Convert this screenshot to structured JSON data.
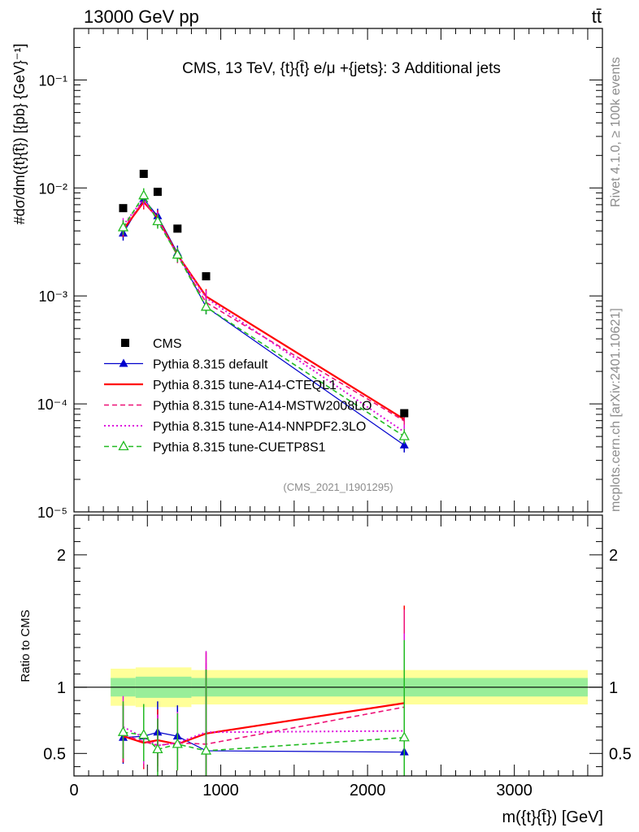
{
  "header": {
    "left": "13000 GeV pp",
    "right": "tt̄"
  },
  "side_labels": {
    "rivet": "Rivet 4.1.0, ≥ 100k events",
    "mcplots": "mcplots.cern.ch [arXiv:2401.10621]"
  },
  "chart_data": [
    {
      "type": "line",
      "panel": "main",
      "title": "CMS, 13 TeV, {t}{t̄} e/μ +{jets}: 3 Additional jets",
      "watermark": "(CMS_2021_I1901295)",
      "xlabel": "m({t}{t̄}) [GeV]",
      "ylabel": "#dσ/dm({t}{t̄}) [{pb} {GeV}⁻¹]",
      "yscale": "log",
      "xlim": [
        0,
        3600
      ],
      "ylim": [
        1e-05,
        0.3
      ],
      "y_ticks": [
        {
          "value": 0.1,
          "label": "10⁻¹"
        },
        {
          "value": 0.01,
          "label": "10⁻²"
        },
        {
          "value": 0.001,
          "label": "10⁻³"
        },
        {
          "value": 0.0001,
          "label": "10⁻⁴"
        },
        {
          "value": 1e-05,
          "label": "10⁻⁵"
        }
      ],
      "x": [
        335,
        475,
        570,
        705,
        900,
        2250
      ],
      "series": [
        {
          "name": "CMS",
          "color": "#000000",
          "style": "points-square",
          "values": [
            0.0065,
            0.0135,
            0.0092,
            0.0042,
            0.00152,
            8.2e-05
          ]
        },
        {
          "name": "Pythia 8.315 default",
          "color": "#0000cc",
          "style": "solid-triangle",
          "values": [
            0.0038,
            0.0079,
            0.0055,
            0.0025,
            0.00079,
            4.15e-05
          ]
        },
        {
          "name": "Pythia 8.315 tune-A14-CTEQL1",
          "color": "#ff0000",
          "style": "solid-thick",
          "values": [
            0.0041,
            0.0074,
            0.0053,
            0.0024,
            0.00099,
            7.2e-05
          ]
        },
        {
          "name": "Pythia 8.315 tune-A14-MSTW2008LO",
          "color": "#ee1177",
          "style": "dashed",
          "values": [
            0.0042,
            0.0076,
            0.0052,
            0.00235,
            0.00087,
            6.95e-05
          ]
        },
        {
          "name": "Pythia 8.315 tune-A14-NNPDF2.3LO",
          "color": "#dd11dd",
          "style": "dotted",
          "values": [
            0.0045,
            0.008,
            0.0051,
            0.0024,
            0.00096,
            5.5e-05
          ]
        },
        {
          "name": "Pythia 8.315 tune-CUETP8S1",
          "color": "#22bb22",
          "style": "dashed-open-triangle",
          "values": [
            0.0043,
            0.0085,
            0.0049,
            0.0024,
            0.00079,
            5e-05
          ]
        }
      ]
    },
    {
      "type": "line",
      "panel": "ratio",
      "ylabel": "Ratio to CMS",
      "xlabel": "m({t}{t̄}) [GeV]",
      "xlim": [
        0,
        3600
      ],
      "ylim": [
        0.33,
        2.3
      ],
      "y_ticks": [
        {
          "value": 2,
          "label": "2"
        },
        {
          "value": 1,
          "label": "1"
        },
        {
          "value": 0.5,
          "label": "0.5"
        }
      ],
      "x_ticks": [
        {
          "value": 0,
          "label": "0"
        },
        {
          "value": 1000,
          "label": "1000"
        },
        {
          "value": 2000,
          "label": "2000"
        },
        {
          "value": 3000,
          "label": "3000"
        }
      ],
      "band_segments": [
        {
          "x0": 250,
          "x1": 420,
          "inner": 0.07,
          "outer": 0.14
        },
        {
          "x0": 420,
          "x1": 800,
          "inner": 0.08,
          "outer": 0.15
        },
        {
          "x0": 800,
          "x1": 3500,
          "inner": 0.07,
          "outer": 0.13
        }
      ],
      "x": [
        335,
        475,
        570,
        705,
        900,
        2250
      ],
      "series": [
        {
          "name": "Pythia 8.315 default",
          "color": "#0000cc",
          "values": [
            0.62,
            0.63,
            0.66,
            0.63,
            0.52,
            0.51
          ]
        },
        {
          "name": "Pythia 8.315 tune-A14-CTEQL1",
          "color": "#ff0000",
          "values": [
            0.63,
            0.58,
            0.6,
            0.57,
            0.65,
            0.88
          ]
        },
        {
          "name": "Pythia 8.315 tune-A14-MSTW2008LO",
          "color": "#ee1177",
          "values": [
            0.64,
            0.59,
            0.56,
            0.58,
            0.57,
            0.85
          ]
        },
        {
          "name": "Pythia 8.315 tune-A14-NNPDF2.3LO",
          "color": "#dd11dd",
          "values": [
            0.7,
            0.62,
            0.56,
            0.58,
            0.66,
            0.67
          ]
        },
        {
          "name": "Pythia 8.315 tune-CUETP8S1",
          "color": "#22bb22",
          "values": [
            0.66,
            0.64,
            0.53,
            0.57,
            0.52,
            0.62
          ]
        }
      ]
    }
  ]
}
